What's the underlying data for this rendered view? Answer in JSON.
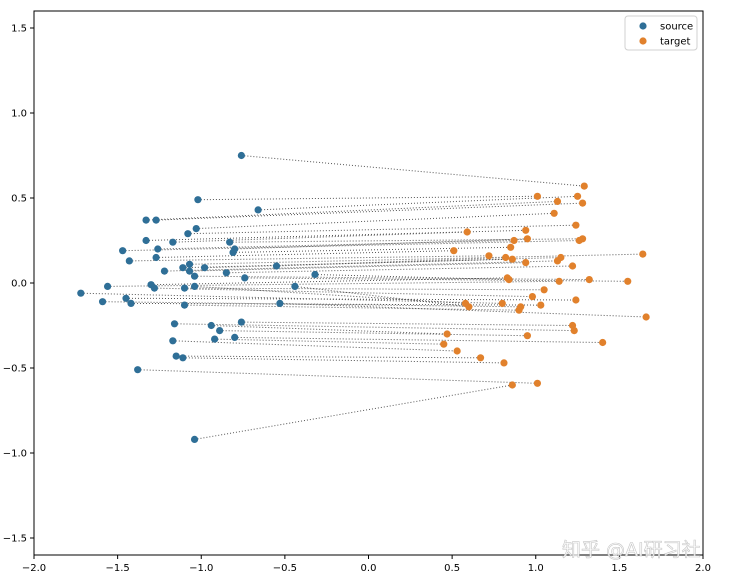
{
  "chart_data": {
    "type": "scatter",
    "title": "",
    "xlabel": "",
    "ylabel": "",
    "xlim": [
      -2.0,
      2.0
    ],
    "ylim": [
      -1.6,
      1.6
    ],
    "xticks": [
      -2.0,
      -1.5,
      -1.0,
      -0.5,
      0.0,
      0.5,
      1.0,
      1.5,
      2.0
    ],
    "xtick_labels": [
      "−2.0",
      "−1.5",
      "−1.0",
      "−0.5",
      "0.0",
      "0.5",
      "1.0",
      "1.5",
      "2.0"
    ],
    "yticks": [
      1.5,
      1.0,
      0.5,
      0.0,
      -0.5,
      -1.0,
      -1.5
    ],
    "ytick_labels": [
      "1.5",
      "1.0",
      "0.5",
      "0.0",
      "−0.5",
      "−1.0",
      "−1.5"
    ],
    "grid": false,
    "legend_position": "top-right",
    "connector_style": "dotted",
    "connector_color": "#555555",
    "series": [
      {
        "name": "source",
        "color": "#2f6f97",
        "points": [
          [
            -0.76,
            0.75
          ],
          [
            -1.02,
            0.49
          ],
          [
            -0.66,
            0.43
          ],
          [
            -1.33,
            0.37
          ],
          [
            -1.27,
            0.37
          ],
          [
            -1.03,
            0.32
          ],
          [
            -1.08,
            0.29
          ],
          [
            -1.33,
            0.25
          ],
          [
            -1.17,
            0.24
          ],
          [
            -0.83,
            0.24
          ],
          [
            -0.8,
            0.2
          ],
          [
            -1.26,
            0.2
          ],
          [
            -1.47,
            0.19
          ],
          [
            -0.81,
            0.18
          ],
          [
            -1.27,
            0.15
          ],
          [
            -1.43,
            0.13
          ],
          [
            -1.07,
            0.11
          ],
          [
            -0.55,
            0.1
          ],
          [
            -1.11,
            0.09
          ],
          [
            -0.98,
            0.09
          ],
          [
            -1.07,
            0.07
          ],
          [
            -1.22,
            0.07
          ],
          [
            -0.85,
            0.06
          ],
          [
            -0.32,
            0.05
          ],
          [
            -1.04,
            0.04
          ],
          [
            -0.74,
            0.03
          ],
          [
            -1.3,
            -0.01
          ],
          [
            -1.56,
            -0.02
          ],
          [
            -1.1,
            -0.03
          ],
          [
            -1.28,
            -0.03
          ],
          [
            -1.04,
            -0.02
          ],
          [
            -0.44,
            -0.02
          ],
          [
            -1.72,
            -0.06
          ],
          [
            -1.45,
            -0.09
          ],
          [
            -1.59,
            -0.11
          ],
          [
            -1.42,
            -0.12
          ],
          [
            -1.1,
            -0.13
          ],
          [
            -0.53,
            -0.12
          ],
          [
            -0.76,
            -0.23
          ],
          [
            -1.16,
            -0.24
          ],
          [
            -0.94,
            -0.25
          ],
          [
            -0.89,
            -0.28
          ],
          [
            -0.8,
            -0.32
          ],
          [
            -0.92,
            -0.33
          ],
          [
            -1.17,
            -0.34
          ],
          [
            -1.15,
            -0.43
          ],
          [
            -1.11,
            -0.44
          ],
          [
            -1.38,
            -0.51
          ],
          [
            -1.04,
            -0.92
          ]
        ]
      },
      {
        "name": "target",
        "color": "#e1812c",
        "points": [
          [
            1.29,
            0.57
          ],
          [
            1.01,
            0.51
          ],
          [
            1.25,
            0.51
          ],
          [
            1.13,
            0.48
          ],
          [
            1.28,
            0.47
          ],
          [
            1.11,
            0.41
          ],
          [
            1.24,
            0.34
          ],
          [
            0.94,
            0.31
          ],
          [
            0.59,
            0.3
          ],
          [
            1.28,
            0.26
          ],
          [
            0.95,
            0.26
          ],
          [
            0.87,
            0.25
          ],
          [
            1.26,
            0.25
          ],
          [
            0.85,
            0.21
          ],
          [
            0.51,
            0.19
          ],
          [
            0.72,
            0.16
          ],
          [
            1.64,
            0.17
          ],
          [
            0.82,
            0.15
          ],
          [
            0.86,
            0.14
          ],
          [
            1.15,
            0.15
          ],
          [
            0.94,
            0.12
          ],
          [
            1.13,
            0.13
          ],
          [
            1.22,
            0.1
          ],
          [
            0.84,
            0.02
          ],
          [
            1.32,
            0.02
          ],
          [
            1.55,
            0.01
          ],
          [
            0.83,
            0.03
          ],
          [
            1.14,
            0.01
          ],
          [
            1.05,
            -0.04
          ],
          [
            0.98,
            -0.08
          ],
          [
            0.58,
            -0.12
          ],
          [
            0.6,
            -0.14
          ],
          [
            0.8,
            -0.12
          ],
          [
            1.24,
            -0.1
          ],
          [
            0.91,
            -0.14
          ],
          [
            1.03,
            -0.13
          ],
          [
            0.9,
            -0.16
          ],
          [
            1.66,
            -0.2
          ],
          [
            1.22,
            -0.25
          ],
          [
            1.23,
            -0.28
          ],
          [
            0.47,
            -0.3
          ],
          [
            0.95,
            -0.31
          ],
          [
            1.4,
            -0.35
          ],
          [
            0.45,
            -0.36
          ],
          [
            0.53,
            -0.4
          ],
          [
            0.67,
            -0.44
          ],
          [
            0.81,
            -0.47
          ],
          [
            1.01,
            -0.59
          ],
          [
            0.86,
            -0.6
          ]
        ]
      }
    ]
  },
  "watermark": {
    "text": "知乎 @AI研习社"
  }
}
